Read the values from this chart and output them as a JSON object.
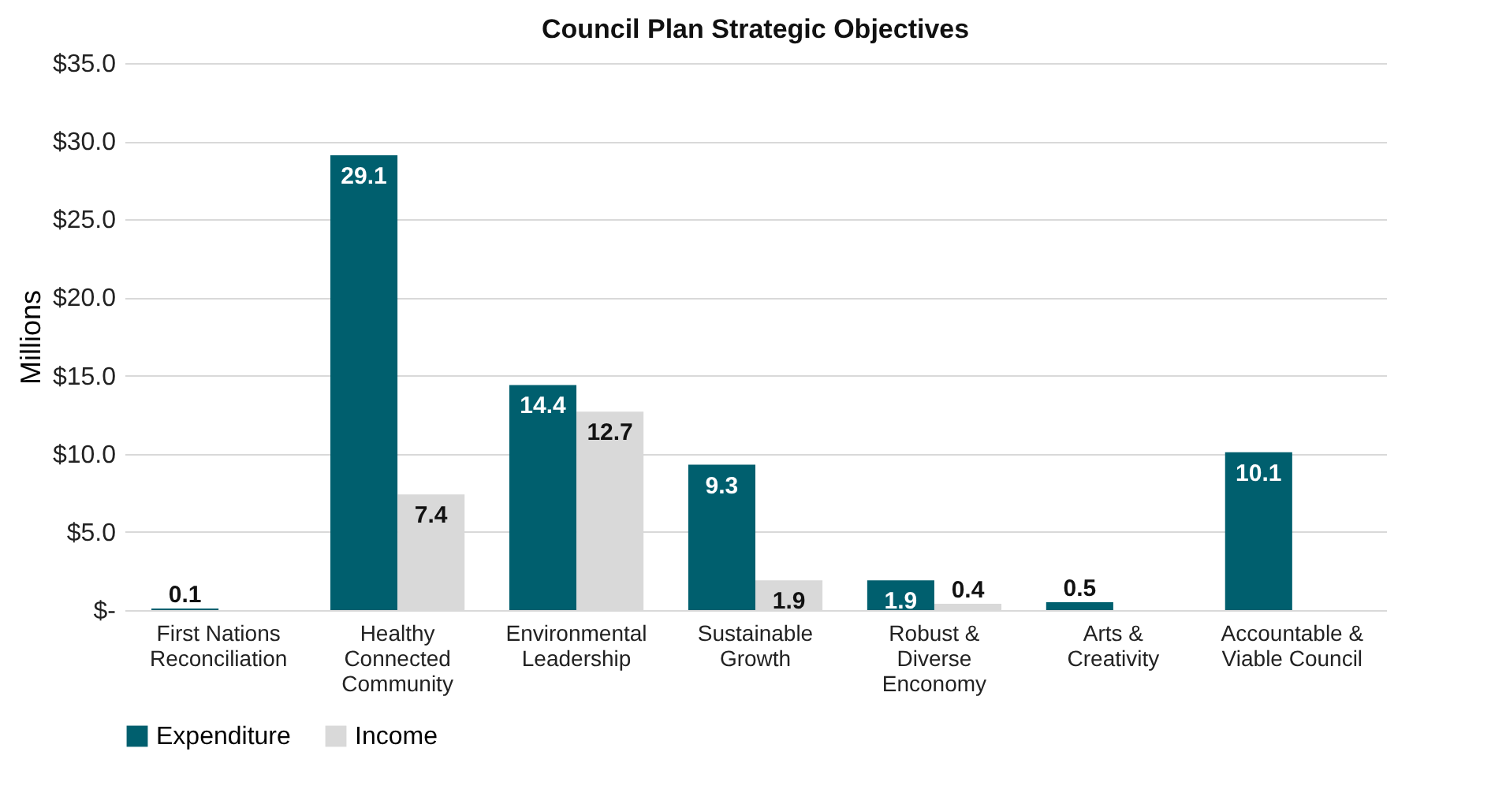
{
  "chart_data": {
    "type": "bar",
    "title": "Council Plan Strategic Objectives",
    "ylabel": "Millions",
    "categories": [
      "First Nations\nReconciliation",
      "Healthy\nConnected\nCommunity",
      "Environmental\nLeadership",
      "Sustainable\nGrowth",
      "Robust &\nDiverse\nEnconomy",
      "Arts &\nCreativity",
      "Accountable &\nViable Council"
    ],
    "series": [
      {
        "name": "Expenditure",
        "color": "#005f6e",
        "values": [
          0.1,
          29.1,
          14.4,
          9.3,
          1.9,
          0.5,
          10.1
        ]
      },
      {
        "name": "Income",
        "color": "#d9d9d9",
        "values": [
          null,
          7.4,
          12.7,
          1.9,
          0.4,
          null,
          null
        ]
      }
    ],
    "data_labels": true,
    "ylim": [
      0,
      35
    ],
    "yticks": [
      {
        "value": 0,
        "label": "$-"
      },
      {
        "value": 5,
        "label": "$5.0"
      },
      {
        "value": 10,
        "label": "$10.0"
      },
      {
        "value": 15,
        "label": "$15.0"
      },
      {
        "value": 20,
        "label": "$20.0"
      },
      {
        "value": 25,
        "label": "$25.0"
      },
      {
        "value": 30,
        "label": "$30.0"
      },
      {
        "value": 35,
        "label": "$35.0"
      }
    ],
    "grid": "y",
    "legend": "bottom"
  }
}
